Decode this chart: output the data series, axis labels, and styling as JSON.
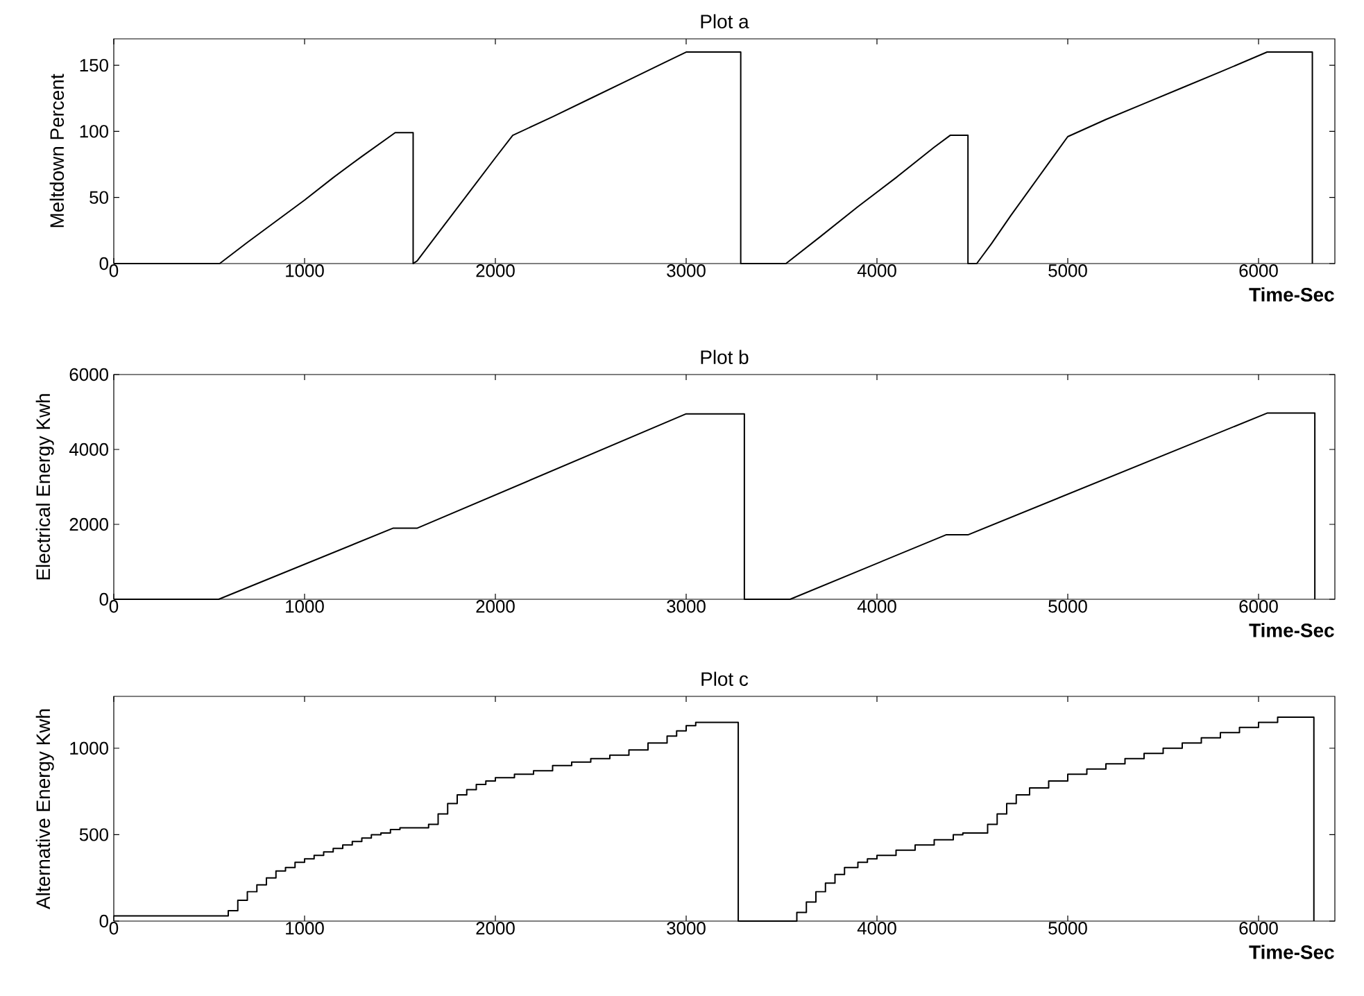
{
  "chart_data": [
    {
      "type": "line",
      "title": "Plot a",
      "xlabel": "Time-Sec",
      "ylabel": "Meltdown Percent",
      "color": "#000000",
      "x": [
        0,
        555,
        700,
        850,
        1000,
        1150,
        1300,
        1475,
        1569,
        1569,
        1590,
        1700,
        1800,
        1900,
        2000,
        2091,
        2300,
        2500,
        2700,
        2900,
        3000,
        3286,
        3286,
        3523,
        3700,
        3900,
        4100,
        4300,
        4384,
        4477,
        4477,
        4523,
        4600,
        4700,
        4800,
        4900,
        5000,
        5200,
        5400,
        5600,
        5800,
        6045,
        6282,
        6282
      ],
      "values": [
        0,
        0,
        16,
        32,
        48,
        65,
        81,
        99,
        99,
        0,
        2,
        23,
        42,
        61,
        80,
        97,
        111,
        125,
        139,
        153,
        160,
        160,
        0,
        0,
        20,
        43,
        65,
        88,
        97,
        97,
        0,
        0,
        15,
        36,
        56,
        76,
        96,
        109,
        121,
        133,
        145,
        160,
        160,
        0
      ],
      "xlim": [
        0,
        6400
      ],
      "ylim": [
        0,
        170
      ],
      "xticks": [
        0,
        1000,
        2000,
        3000,
        4000,
        5000,
        6000
      ],
      "yticks": [
        0,
        50,
        100,
        150
      ]
    },
    {
      "type": "line",
      "title": "Plot b",
      "xlabel": "Time-Sec",
      "ylabel": "Electrical Energy Kwh",
      "color": "#000000",
      "x": [
        0,
        550,
        1465,
        1591,
        3000,
        3305,
        3305,
        3545,
        4362,
        4477,
        6045,
        6295,
        6295
      ],
      "values": [
        0,
        0,
        1900,
        1900,
        4950,
        4950,
        0,
        0,
        1720,
        1720,
        4970,
        4970,
        0
      ],
      "xlim": [
        0,
        6400
      ],
      "ylim": [
        0,
        6000
      ],
      "xticks": [
        0,
        1000,
        2000,
        3000,
        4000,
        5000,
        6000
      ],
      "yticks": [
        0,
        2000,
        4000,
        6000
      ]
    },
    {
      "type": "step",
      "title": "Plot c",
      "xlabel": "Time-Sec",
      "ylabel": "Alternative Energy Kwh",
      "color": "#000000",
      "x": [
        0,
        600,
        650,
        700,
        750,
        800,
        850,
        900,
        950,
        1000,
        1050,
        1100,
        1150,
        1200,
        1250,
        1300,
        1350,
        1400,
        1450,
        1500,
        1650,
        1700,
        1750,
        1800,
        1850,
        1900,
        1950,
        2000,
        2100,
        2200,
        2300,
        2400,
        2500,
        2600,
        2700,
        2800,
        2900,
        2950,
        3000,
        3050,
        3273,
        3536,
        3580,
        3630,
        3680,
        3730,
        3780,
        3830,
        3900,
        3950,
        4000,
        4100,
        4200,
        4300,
        4400,
        4450,
        4580,
        4630,
        4680,
        4730,
        4800,
        4900,
        5000,
        5100,
        5200,
        5300,
        5400,
        5500,
        5600,
        5700,
        5800,
        5900,
        6000,
        6100,
        6290
      ],
      "values": [
        30,
        60,
        120,
        170,
        210,
        250,
        290,
        310,
        340,
        360,
        380,
        400,
        420,
        440,
        460,
        480,
        500,
        510,
        530,
        540,
        560,
        620,
        680,
        730,
        760,
        790,
        810,
        830,
        850,
        870,
        900,
        920,
        940,
        960,
        990,
        1030,
        1070,
        1100,
        1130,
        1150,
        0,
        0,
        50,
        110,
        170,
        220,
        270,
        310,
        340,
        360,
        380,
        410,
        440,
        470,
        500,
        510,
        560,
        620,
        680,
        730,
        770,
        810,
        850,
        880,
        910,
        940,
        970,
        1000,
        1030,
        1060,
        1090,
        1120,
        1150,
        1180,
        0
      ],
      "xlim": [
        0,
        6400
      ],
      "ylim": [
        0,
        1300
      ],
      "xticks": [
        0,
        1000,
        2000,
        3000,
        4000,
        5000,
        6000
      ],
      "yticks": [
        0,
        500,
        1000
      ]
    }
  ]
}
